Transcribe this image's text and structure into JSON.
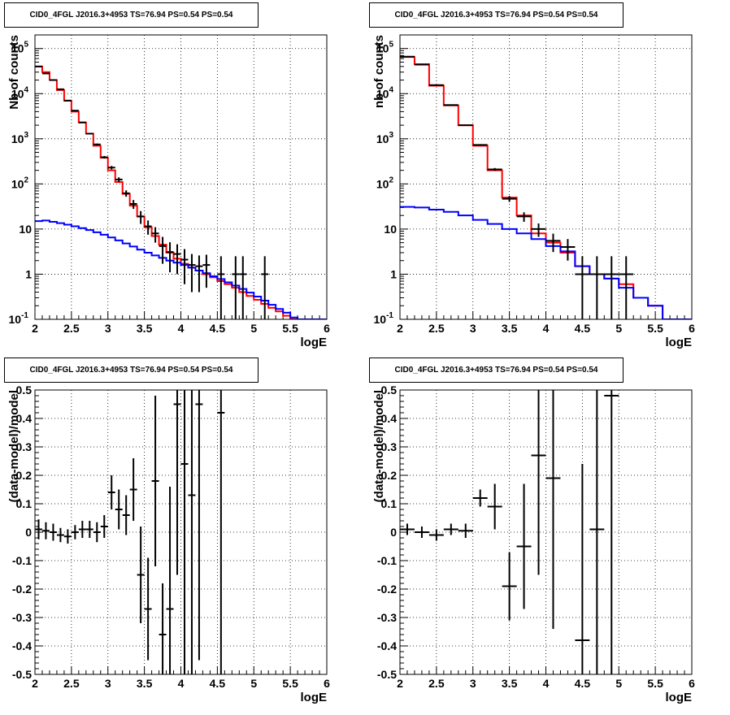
{
  "chart_data": [
    {
      "type": "line",
      "title": "CID0_4FGL J2016.3+4953 TS=76.94 PS=0.54 PS=0.54",
      "xlabel": "logE",
      "ylabel": "Nb of counts",
      "xlim": [
        2,
        6
      ],
      "ylim": [
        0.1,
        200000
      ],
      "yscale": "log",
      "grid": true,
      "xticks": [
        "2",
        "2.5",
        "3",
        "3.5",
        "4",
        "4.5",
        "5",
        "5.5",
        "6"
      ],
      "yticks": [
        "10^-1",
        "1",
        "10",
        "10^2",
        "10^3",
        "10^4",
        "10^5"
      ],
      "bin_width": 0.1,
      "series": [
        {
          "color": "#ff0000",
          "style": "step",
          "x": [
            2.0,
            2.1,
            2.2,
            2.3,
            2.4,
            2.5,
            2.6,
            2.7,
            2.8,
            2.9,
            3.0,
            3.1,
            3.2,
            3.3,
            3.4,
            3.5,
            3.6,
            3.7,
            3.8,
            3.9,
            4.0,
            4.1,
            4.2,
            4.3,
            4.4,
            4.5,
            4.6,
            4.7,
            4.8,
            4.9,
            5.0,
            5.1,
            5.2,
            5.3,
            5.4,
            5.5,
            5.6,
            5.7,
            5.8,
            5.9
          ],
          "values": [
            40000,
            30000,
            20000,
            12000,
            7000,
            4000,
            2300,
            1300,
            700,
            380,
            200,
            110,
            60,
            33,
            19,
            11,
            7,
            4.5,
            3,
            2.2,
            1.7,
            1.4,
            1.2,
            1.0,
            0.85,
            0.7,
            0.6,
            0.5,
            0.4,
            0.33,
            0.27,
            0.22,
            0.18,
            0.15,
            0.12,
            0.1,
            0.1,
            0.1,
            0.1,
            0.1
          ]
        },
        {
          "color": "#0000ff",
          "style": "step",
          "x": [
            2.0,
            2.1,
            2.2,
            2.3,
            2.4,
            2.5,
            2.6,
            2.7,
            2.8,
            2.9,
            3.0,
            3.1,
            3.2,
            3.3,
            3.4,
            3.5,
            3.6,
            3.7,
            3.8,
            3.9,
            4.0,
            4.1,
            4.2,
            4.3,
            4.4,
            4.5,
            4.6,
            4.7,
            4.8,
            4.9,
            5.0,
            5.1,
            5.2,
            5.3,
            5.4,
            5.5,
            5.6,
            5.7,
            5.8,
            5.9
          ],
          "values": [
            15,
            15.5,
            14.5,
            13.5,
            12.5,
            11.5,
            10.5,
            9.5,
            8.5,
            7.5,
            6.5,
            5.6,
            4.8,
            4.1,
            3.5,
            3.0,
            2.6,
            2.3,
            2.0,
            1.8,
            1.6,
            1.4,
            1.2,
            1.05,
            0.9,
            0.78,
            0.66,
            0.56,
            0.47,
            0.39,
            0.32,
            0.26,
            0.21,
            0.17,
            0.14,
            0.11,
            0.1,
            0.1,
            0.1,
            0.1
          ]
        },
        {
          "color": "#000000",
          "style": "points",
          "x": [
            2.05,
            2.15,
            2.25,
            2.35,
            2.45,
            2.55,
            2.65,
            2.75,
            2.85,
            2.95,
            3.05,
            3.15,
            3.25,
            3.35,
            3.45,
            3.55,
            3.65,
            3.75,
            3.85,
            3.95,
            4.05,
            4.15,
            4.25,
            4.35,
            4.55,
            4.75,
            4.85,
            5.15
          ],
          "values": [
            40000,
            28000,
            20000,
            12500,
            7000,
            4200,
            2300,
            1300,
            750,
            390,
            230,
            125,
            62,
            36,
            19,
            11.5,
            8,
            4.2,
            3.1,
            2.8,
            2.1,
            1.6,
            1.5,
            1.6,
            1,
            1,
            1,
            1
          ],
          "y_err_lo": [
            300,
            250,
            200,
            150,
            120,
            90,
            70,
            50,
            35,
            25,
            20,
            15,
            10,
            8,
            6,
            4,
            3,
            2.5,
            2,
            1.8,
            1.5,
            1.2,
            1.1,
            1.1,
            0.99,
            0.99,
            0.99,
            0.99
          ],
          "y_err_hi": [
            300,
            250,
            200,
            150,
            120,
            90,
            70,
            50,
            35,
            25,
            20,
            15,
            10,
            8,
            6,
            4,
            3,
            2.5,
            2,
            1.8,
            1.5,
            1.2,
            1.1,
            1.1,
            1.5,
            1.5,
            1.5,
            1.5
          ]
        }
      ]
    },
    {
      "type": "line",
      "title": "CID0_4FGL J2016.3+4953 TS=76.94 PS=0.54 PS=0.54",
      "xlabel": "logE",
      "ylabel": "nb of counts",
      "xlim": [
        2,
        6
      ],
      "ylim": [
        0.1,
        200000
      ],
      "yscale": "log",
      "grid": true,
      "xticks": [
        "2",
        "2.5",
        "3",
        "3.5",
        "4",
        "4.5",
        "5",
        "5.5",
        "6"
      ],
      "yticks": [
        "10^-1",
        "1",
        "10",
        "10^2",
        "10^3",
        "10^4",
        "10^5"
      ],
      "bin_width": 0.2,
      "series": [
        {
          "color": "#ff0000",
          "style": "step",
          "x": [
            2.0,
            2.2,
            2.4,
            2.6,
            2.8,
            3.0,
            3.2,
            3.4,
            3.6,
            3.8,
            4.0,
            4.2,
            4.4,
            4.6,
            4.8,
            5.0,
            5.2,
            5.4,
            5.6,
            5.8
          ],
          "values": [
            65000,
            45000,
            15000,
            5500,
            2000,
            700,
            200,
            50,
            20,
            8,
            5,
            3,
            1.5,
            1.0,
            0.8,
            0.6,
            0.3,
            0.2,
            0.1,
            0.1
          ]
        },
        {
          "color": "#0000ff",
          "style": "step",
          "x": [
            2.0,
            2.2,
            2.4,
            2.6,
            2.8,
            3.0,
            3.2,
            3.4,
            3.6,
            3.8,
            4.0,
            4.2,
            4.4,
            4.6,
            4.8,
            5.0,
            5.2,
            5.4,
            5.6,
            5.8
          ],
          "values": [
            31,
            30,
            27,
            24,
            20,
            16,
            13,
            10,
            8,
            6,
            4.2,
            3.2,
            1.5,
            1.0,
            0.8,
            0.5,
            0.3,
            0.2,
            0.1,
            0.1
          ]
        },
        {
          "color": "#000000",
          "style": "points",
          "x": [
            2.1,
            2.3,
            2.5,
            2.7,
            2.9,
            3.1,
            3.3,
            3.5,
            3.7,
            3.9,
            4.1,
            4.3,
            4.5,
            4.7,
            4.9,
            5.1
          ],
          "values": [
            66000,
            44000,
            15500,
            5600,
            2000,
            730,
            210,
            47,
            19,
            10,
            5.5,
            4,
            1,
            1,
            1,
            1
          ],
          "y_err_lo": [
            300,
            250,
            150,
            80,
            50,
            30,
            15,
            7,
            4.5,
            3.3,
            2.4,
            2,
            0.99,
            0.99,
            0.99,
            0.99
          ],
          "y_err_hi": [
            300,
            250,
            150,
            80,
            50,
            30,
            15,
            7,
            4.5,
            3.3,
            2.4,
            2,
            1.5,
            1.5,
            1.5,
            1.5
          ]
        }
      ]
    },
    {
      "type": "scatter",
      "title": "CID0_4FGL J2016.3+4953 TS=76.94 PS=0.54 PS=0.54",
      "xlabel": "logE",
      "ylabel": "(data-model)/model",
      "xlim": [
        2,
        6
      ],
      "ylim": [
        -0.5,
        0.5
      ],
      "grid": true,
      "xticks": [
        "2",
        "2.5",
        "3",
        "3.5",
        "4",
        "4.5",
        "5",
        "5.5",
        "6"
      ],
      "yticks": [
        "-0.5",
        "-0.4",
        "-0.3",
        "-0.2",
        "-0.1",
        "0",
        "0.1",
        "0.2",
        "0.3",
        "0.4",
        "0.5"
      ],
      "x_half_width": 0.05,
      "series": [
        {
          "color": "#000000",
          "x": [
            2.05,
            2.15,
            2.25,
            2.35,
            2.45,
            2.55,
            2.65,
            2.75,
            2.85,
            2.95,
            3.05,
            3.15,
            3.25,
            3.35,
            3.45,
            3.55,
            3.65,
            3.75,
            3.85,
            3.95,
            4.05,
            4.15,
            4.25,
            4.55
          ],
          "values": [
            0.01,
            0.005,
            0.0,
            -0.01,
            -0.015,
            0.0,
            0.01,
            0.01,
            0.0,
            0.02,
            0.14,
            0.08,
            0.06,
            0.15,
            -0.15,
            -0.27,
            0.18,
            -0.36,
            -0.27,
            0.45,
            0.24,
            0.13,
            0.45,
            0.42
          ],
          "y_err": [
            0.035,
            0.03,
            0.03,
            0.025,
            0.025,
            0.025,
            0.03,
            0.03,
            0.035,
            0.04,
            0.06,
            0.07,
            0.07,
            0.11,
            0.17,
            0.18,
            0.3,
            0.18,
            0.43,
            0.6,
            0.8,
            0.75,
            0.9,
            1.5
          ]
        }
      ]
    },
    {
      "type": "scatter",
      "title": "CID0_4FGL J2016.3+4953 TS=76.94 PS=0.54 PS=0.54",
      "xlabel": "logE",
      "ylabel": "(data-model)/model",
      "xlim": [
        2,
        6
      ],
      "ylim": [
        -0.5,
        0.5
      ],
      "grid": true,
      "xticks": [
        "2",
        "2.5",
        "3",
        "3.5",
        "4",
        "4.5",
        "5",
        "5.5",
        "6"
      ],
      "yticks": [
        "-0.5",
        "-0.4",
        "-0.3",
        "-0.2",
        "-0.1",
        "0",
        "0.1",
        "0.2",
        "0.3",
        "0.4",
        "0.5"
      ],
      "x_half_width": 0.1,
      "series": [
        {
          "color": "#000000",
          "x": [
            2.1,
            2.3,
            2.5,
            2.7,
            2.9,
            3.1,
            3.3,
            3.5,
            3.7,
            3.9,
            4.1,
            4.5,
            4.7,
            4.9
          ],
          "values": [
            0.01,
            0.0,
            -0.01,
            0.01,
            0.005,
            0.12,
            0.09,
            -0.19,
            -0.05,
            0.27,
            0.19,
            -0.38,
            0.01,
            0.48
          ],
          "y_err": [
            0.02,
            0.02,
            0.02,
            0.02,
            0.025,
            0.03,
            0.08,
            0.12,
            0.22,
            0.42,
            0.53,
            0.62,
            1.0,
            1.0
          ]
        }
      ]
    }
  ]
}
